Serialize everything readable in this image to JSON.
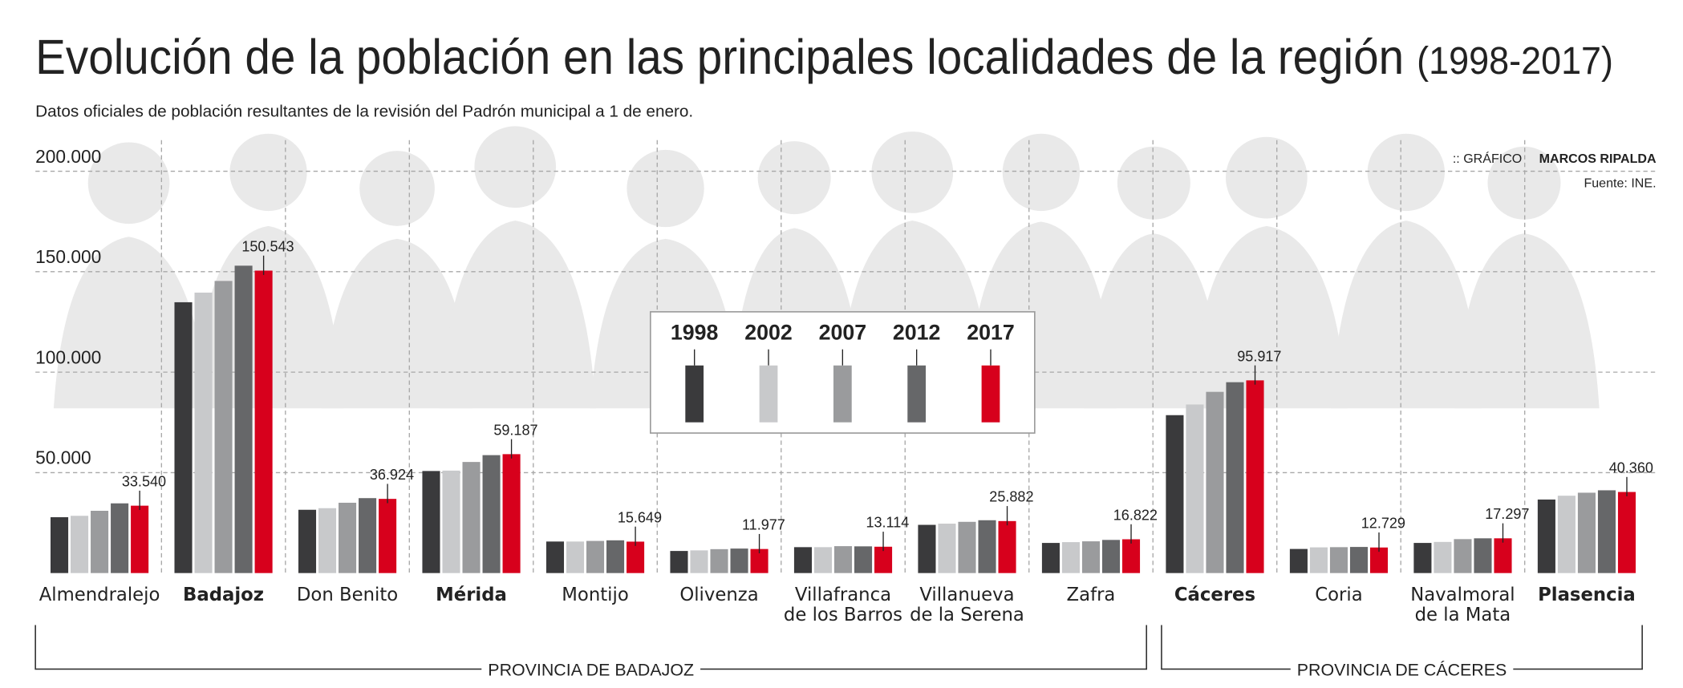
{
  "chart_data": {
    "type": "bar",
    "title": "Evolución de la población en las principales localidades de la región",
    "title_period": "(1998-2017)",
    "subtitle": "Datos oficiales de población resultantes de la revisión del Padrón municipal a 1 de enero.",
    "credit_prefix": ":: GRÁFICO",
    "credit_author": "MARCOS RIPALDA",
    "source": "Fuente: INE.",
    "categories": [
      "Almendralejo",
      "Badajoz",
      "Don Benito",
      "Mérida",
      "Montijo",
      "Olivenza",
      "Villafranca\nde los Barros",
      "Villanueva\nde la Serena",
      "Zafra",
      "Cáceres",
      "Coria",
      "Navalmoral\nde la Mata",
      "Plasencia"
    ],
    "bold_categories": [
      false,
      true,
      false,
      true,
      false,
      false,
      false,
      false,
      false,
      true,
      false,
      false,
      true
    ],
    "groups": [
      {
        "name": "PROVINCIA DE BADAJOZ",
        "span": 9
      },
      {
        "name": "PROVINCIA DE CÁCERES",
        "span": 4
      }
    ],
    "series": [
      {
        "name": "1998",
        "color": "#3a3a3c",
        "values": [
          27800,
          134800,
          31500,
          50800,
          15700,
          11000,
          12900,
          24000,
          15000,
          78600,
          12000,
          15000,
          36600
        ]
      },
      {
        "name": "2002",
        "color": "#c8c9cb",
        "values": [
          28500,
          139600,
          32300,
          51000,
          15700,
          11300,
          12900,
          24600,
          15400,
          83900,
          12800,
          15500,
          38500
        ]
      },
      {
        "name": "2007",
        "color": "#9a9b9d",
        "values": [
          31000,
          145400,
          35000,
          55300,
          16000,
          11900,
          13400,
          25500,
          15800,
          90200,
          12900,
          16900,
          40000
        ]
      },
      {
        "name": "2012",
        "color": "#666769",
        "values": [
          34700,
          153000,
          37300,
          58700,
          16300,
          12200,
          13300,
          26300,
          16500,
          95000,
          13000,
          17300,
          41200
        ]
      },
      {
        "name": "2017",
        "color": "#d7001c",
        "values": [
          33540,
          150543,
          36924,
          59187,
          15649,
          11977,
          13114,
          25882,
          16822,
          95917,
          12729,
          17297,
          40360
        ],
        "value_labels": [
          "33.540",
          "150.543",
          "36.924",
          "59.187",
          "15.649",
          "11.977",
          "13.114",
          "25.882",
          "16.822",
          "95.917",
          "12.729",
          "17.297",
          "40.360"
        ]
      }
    ],
    "ylim": [
      0,
      200000
    ],
    "yticks": [
      {
        "value": 50000,
        "label": "50.000"
      },
      {
        "value": 100000,
        "label": "100.000"
      },
      {
        "value": 150000,
        "label": "150.000"
      },
      {
        "value": 200000,
        "label": "200.000"
      }
    ],
    "grid": true,
    "legend": "center"
  }
}
